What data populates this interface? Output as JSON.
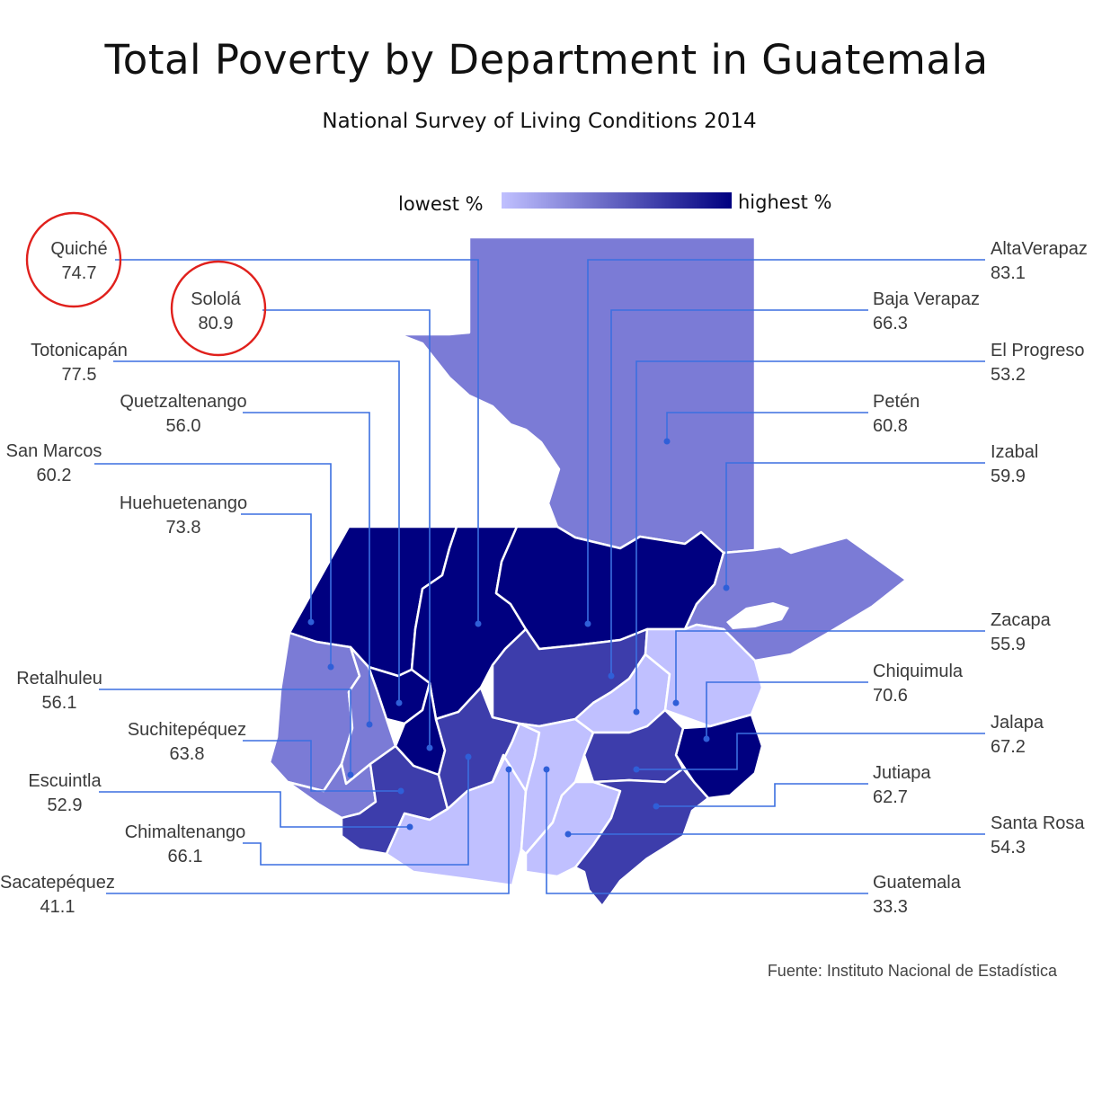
{
  "title": "Total Poverty by Department in Guatemala",
  "subtitle": "National Survey of Living Conditions 2014",
  "legend": {
    "low_label": "lowest %",
    "high_label": "highest %",
    "low_color": "#c0c0ff",
    "high_color": "#000080"
  },
  "source": "Fuente: Instituto Nacional de Estadística",
  "highlighted": [
    "Quiché",
    "Sololá"
  ],
  "highlight_color": "#e0201c",
  "departments": [
    {
      "id": "quiche",
      "name": "Quiché",
      "value": "74.7",
      "fill": "#000080"
    },
    {
      "id": "solola",
      "name": "Sololá",
      "value": "80.9",
      "fill": "#000080"
    },
    {
      "id": "totonicapan",
      "name": "Totonicapán",
      "value": "77.5",
      "fill": "#000080"
    },
    {
      "id": "quetzaltenango",
      "name": "Quetzaltenango",
      "value": "56.0",
      "fill": "#7b7bd6"
    },
    {
      "id": "sanmarcos",
      "name": "San Marcos",
      "value": "60.2",
      "fill": "#7b7bd6"
    },
    {
      "id": "huehuetenango",
      "name": "Huehuetenango",
      "value": "73.8",
      "fill": "#000080"
    },
    {
      "id": "retalhuleu",
      "name": "Retalhuleu",
      "value": "56.1",
      "fill": "#7b7bd6"
    },
    {
      "id": "suchitepequez",
      "name": "Suchitepéquez",
      "value": "63.8",
      "fill": "#3d3dab"
    },
    {
      "id": "escuintla",
      "name": "Escuintla",
      "value": "52.9",
      "fill": "#c0c0ff"
    },
    {
      "id": "chimaltenango",
      "name": "Chimaltenango",
      "value": "66.1",
      "fill": "#3d3dab"
    },
    {
      "id": "sacatepequez",
      "name": "Sacatepéquez",
      "value": "41.1",
      "fill": "#c0c0ff"
    },
    {
      "id": "altaverapaz",
      "name": "AltaVerapaz",
      "value": "83.1",
      "fill": "#000080"
    },
    {
      "id": "bajaverapaz",
      "name": "Baja Verapaz",
      "value": "66.3",
      "fill": "#3d3dab"
    },
    {
      "id": "elprogreso",
      "name": "El Progreso",
      "value": "53.2",
      "fill": "#c0c0ff"
    },
    {
      "id": "peten",
      "name": "Petén",
      "value": "60.8",
      "fill": "#7b7bd6"
    },
    {
      "id": "izabal",
      "name": "Izabal",
      "value": "59.9",
      "fill": "#7b7bd6"
    },
    {
      "id": "zacapa",
      "name": "Zacapa",
      "value": "55.9",
      "fill": "#c0c0ff"
    },
    {
      "id": "chiquimula",
      "name": "Chiquimula",
      "value": "70.6",
      "fill": "#000080"
    },
    {
      "id": "jalapa",
      "name": "Jalapa",
      "value": "67.2",
      "fill": "#3d3dab"
    },
    {
      "id": "jutiapa",
      "name": "Jutiapa",
      "value": "62.7",
      "fill": "#3d3dab"
    },
    {
      "id": "santarosa",
      "name": "Santa Rosa",
      "value": "54.3",
      "fill": "#c0c0ff"
    },
    {
      "id": "guatemala",
      "name": "Guatemala",
      "value": "33.3",
      "fill": "#c0c0ff"
    }
  ]
}
